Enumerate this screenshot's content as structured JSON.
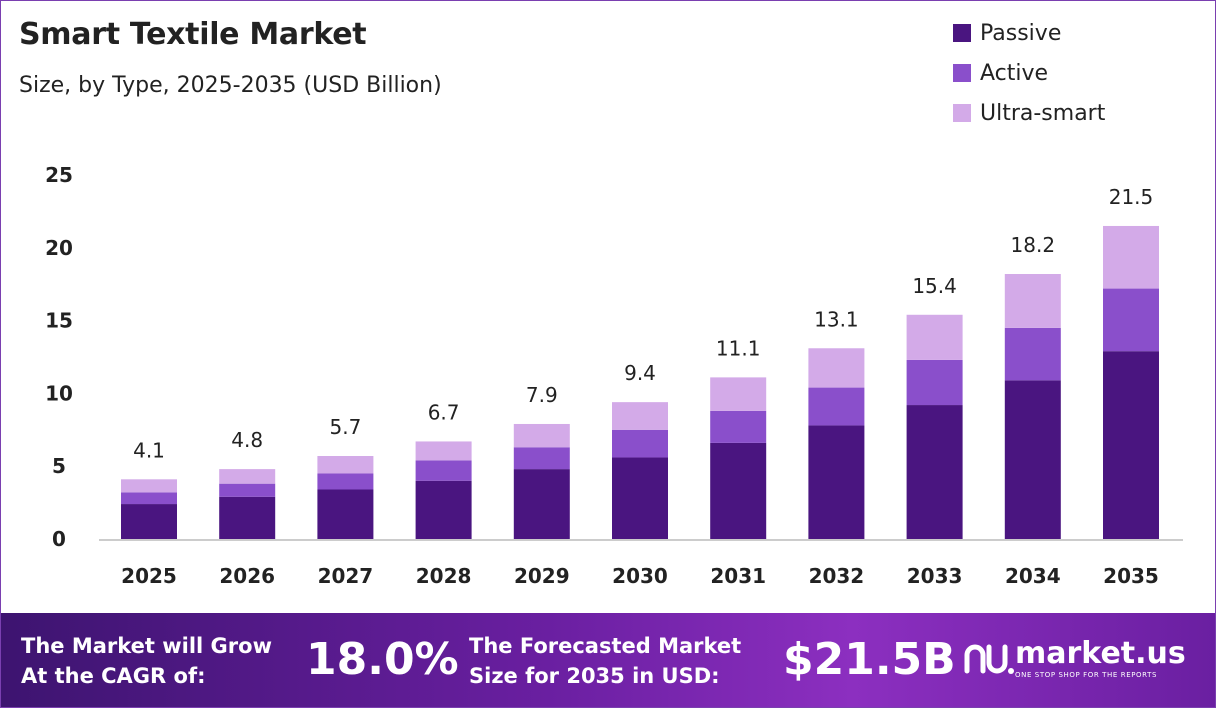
{
  "header": {
    "title": "Smart Textile Market",
    "subtitle": "Size, by Type, 2025-2035 (USD Billion)"
  },
  "colors": {
    "passive": "#4a1580",
    "active": "#8a4fcb",
    "ultra_smart": "#d3aae8",
    "footer_brand": "#6a1fa1"
  },
  "chart_data": {
    "type": "bar",
    "stacked": true,
    "title": "Smart Textile Market",
    "subtitle": "Size, by Type, 2025-2035 (USD Billion)",
    "categories": [
      "2025",
      "2026",
      "2027",
      "2028",
      "2029",
      "2030",
      "2031",
      "2032",
      "2033",
      "2034",
      "2035"
    ],
    "series": [
      {
        "name": "Passive",
        "values": [
          2.4,
          2.9,
          3.4,
          4.0,
          4.8,
          5.6,
          6.6,
          7.8,
          9.2,
          10.9,
          12.9
        ]
      },
      {
        "name": "Active",
        "values": [
          0.8,
          0.9,
          1.1,
          1.4,
          1.5,
          1.9,
          2.2,
          2.6,
          3.1,
          3.6,
          4.3
        ]
      },
      {
        "name": "Ultra-smart",
        "values": [
          0.9,
          1.0,
          1.2,
          1.3,
          1.6,
          1.9,
          2.3,
          2.7,
          3.1,
          3.7,
          4.3
        ]
      }
    ],
    "totals": [
      "4.1",
      "4.8",
      "5.7",
      "6.7",
      "7.9",
      "9.4",
      "11.1",
      "13.1",
      "15.4",
      "18.2",
      "21.5"
    ],
    "yticks": [
      0,
      5,
      10,
      15,
      20,
      25
    ],
    "ylim": [
      0,
      25
    ],
    "grid": false,
    "legend_position": "top-right"
  },
  "footer": {
    "cagr_line1": "The Market will Grow",
    "cagr_line2": "At the CAGR of:",
    "cagr_value": "18.0%",
    "forecast_line1": "The Forecasted Market",
    "forecast_line2": "Size for 2035 in USD:",
    "forecast_value": "$21.5B",
    "brand": "market.us",
    "brand_tagline": "ONE STOP SHOP FOR THE REPORTS"
  }
}
